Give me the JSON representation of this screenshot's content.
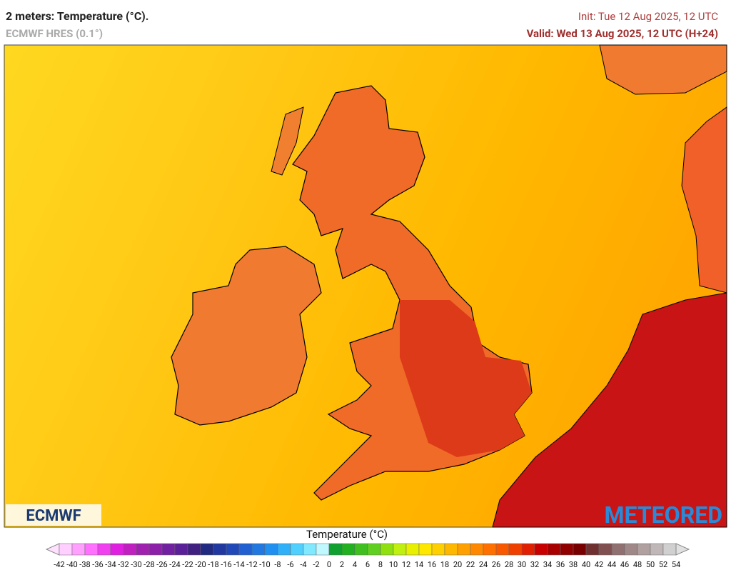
{
  "header": {
    "title": "2 meters: Temperature (°C).",
    "model": "ECMWF HRES (0.1°)",
    "init": "Init: Tue 12 Aug 2025, 12 UTC",
    "valid": "Valid: Wed 13 Aug 2025, 12 UTC (H+24)"
  },
  "logos": {
    "left": "ECMWF",
    "right": "METEORED"
  },
  "legend": {
    "title": "Temperature (°C)",
    "ticks": [
      -42,
      -40,
      -38,
      -36,
      -34,
      -32,
      -30,
      -28,
      -26,
      -24,
      -22,
      -20,
      -18,
      -16,
      -14,
      -12,
      -10,
      -8,
      -6,
      -4,
      -2,
      0,
      2,
      4,
      6,
      8,
      10,
      12,
      14,
      16,
      18,
      20,
      22,
      24,
      26,
      28,
      30,
      32,
      34,
      36,
      38,
      40,
      42,
      44,
      46,
      48,
      50,
      52,
      54
    ],
    "colors": [
      "#ffd0ff",
      "#ffa0ff",
      "#ff70ff",
      "#f040f0",
      "#e020e0",
      "#c020c0",
      "#a020b0",
      "#8c20a8",
      "#7020a0",
      "#5a2098",
      "#402080",
      "#202a80",
      "#2038a0",
      "#2048b8",
      "#2060d0",
      "#2078e0",
      "#2090f0",
      "#30b0f8",
      "#50d0ff",
      "#80e8ff",
      "#c0f8ff",
      "#10a030",
      "#20b020",
      "#40c020",
      "#60d020",
      "#90e010",
      "#c0f010",
      "#e8f000",
      "#ffe800",
      "#ffd000",
      "#ffb800",
      "#ffa000",
      "#ff8800",
      "#ff7000",
      "#f85800",
      "#f04000",
      "#e02000",
      "#c80000",
      "#a80000",
      "#900000",
      "#780000",
      "#703030",
      "#805050",
      "#907070",
      "#a08888",
      "#b0a0a0",
      "#c0b8b8",
      "#d0d0d0"
    ],
    "under_color": "#ffe0ff",
    "over_color": "#e0e0e0"
  }
}
